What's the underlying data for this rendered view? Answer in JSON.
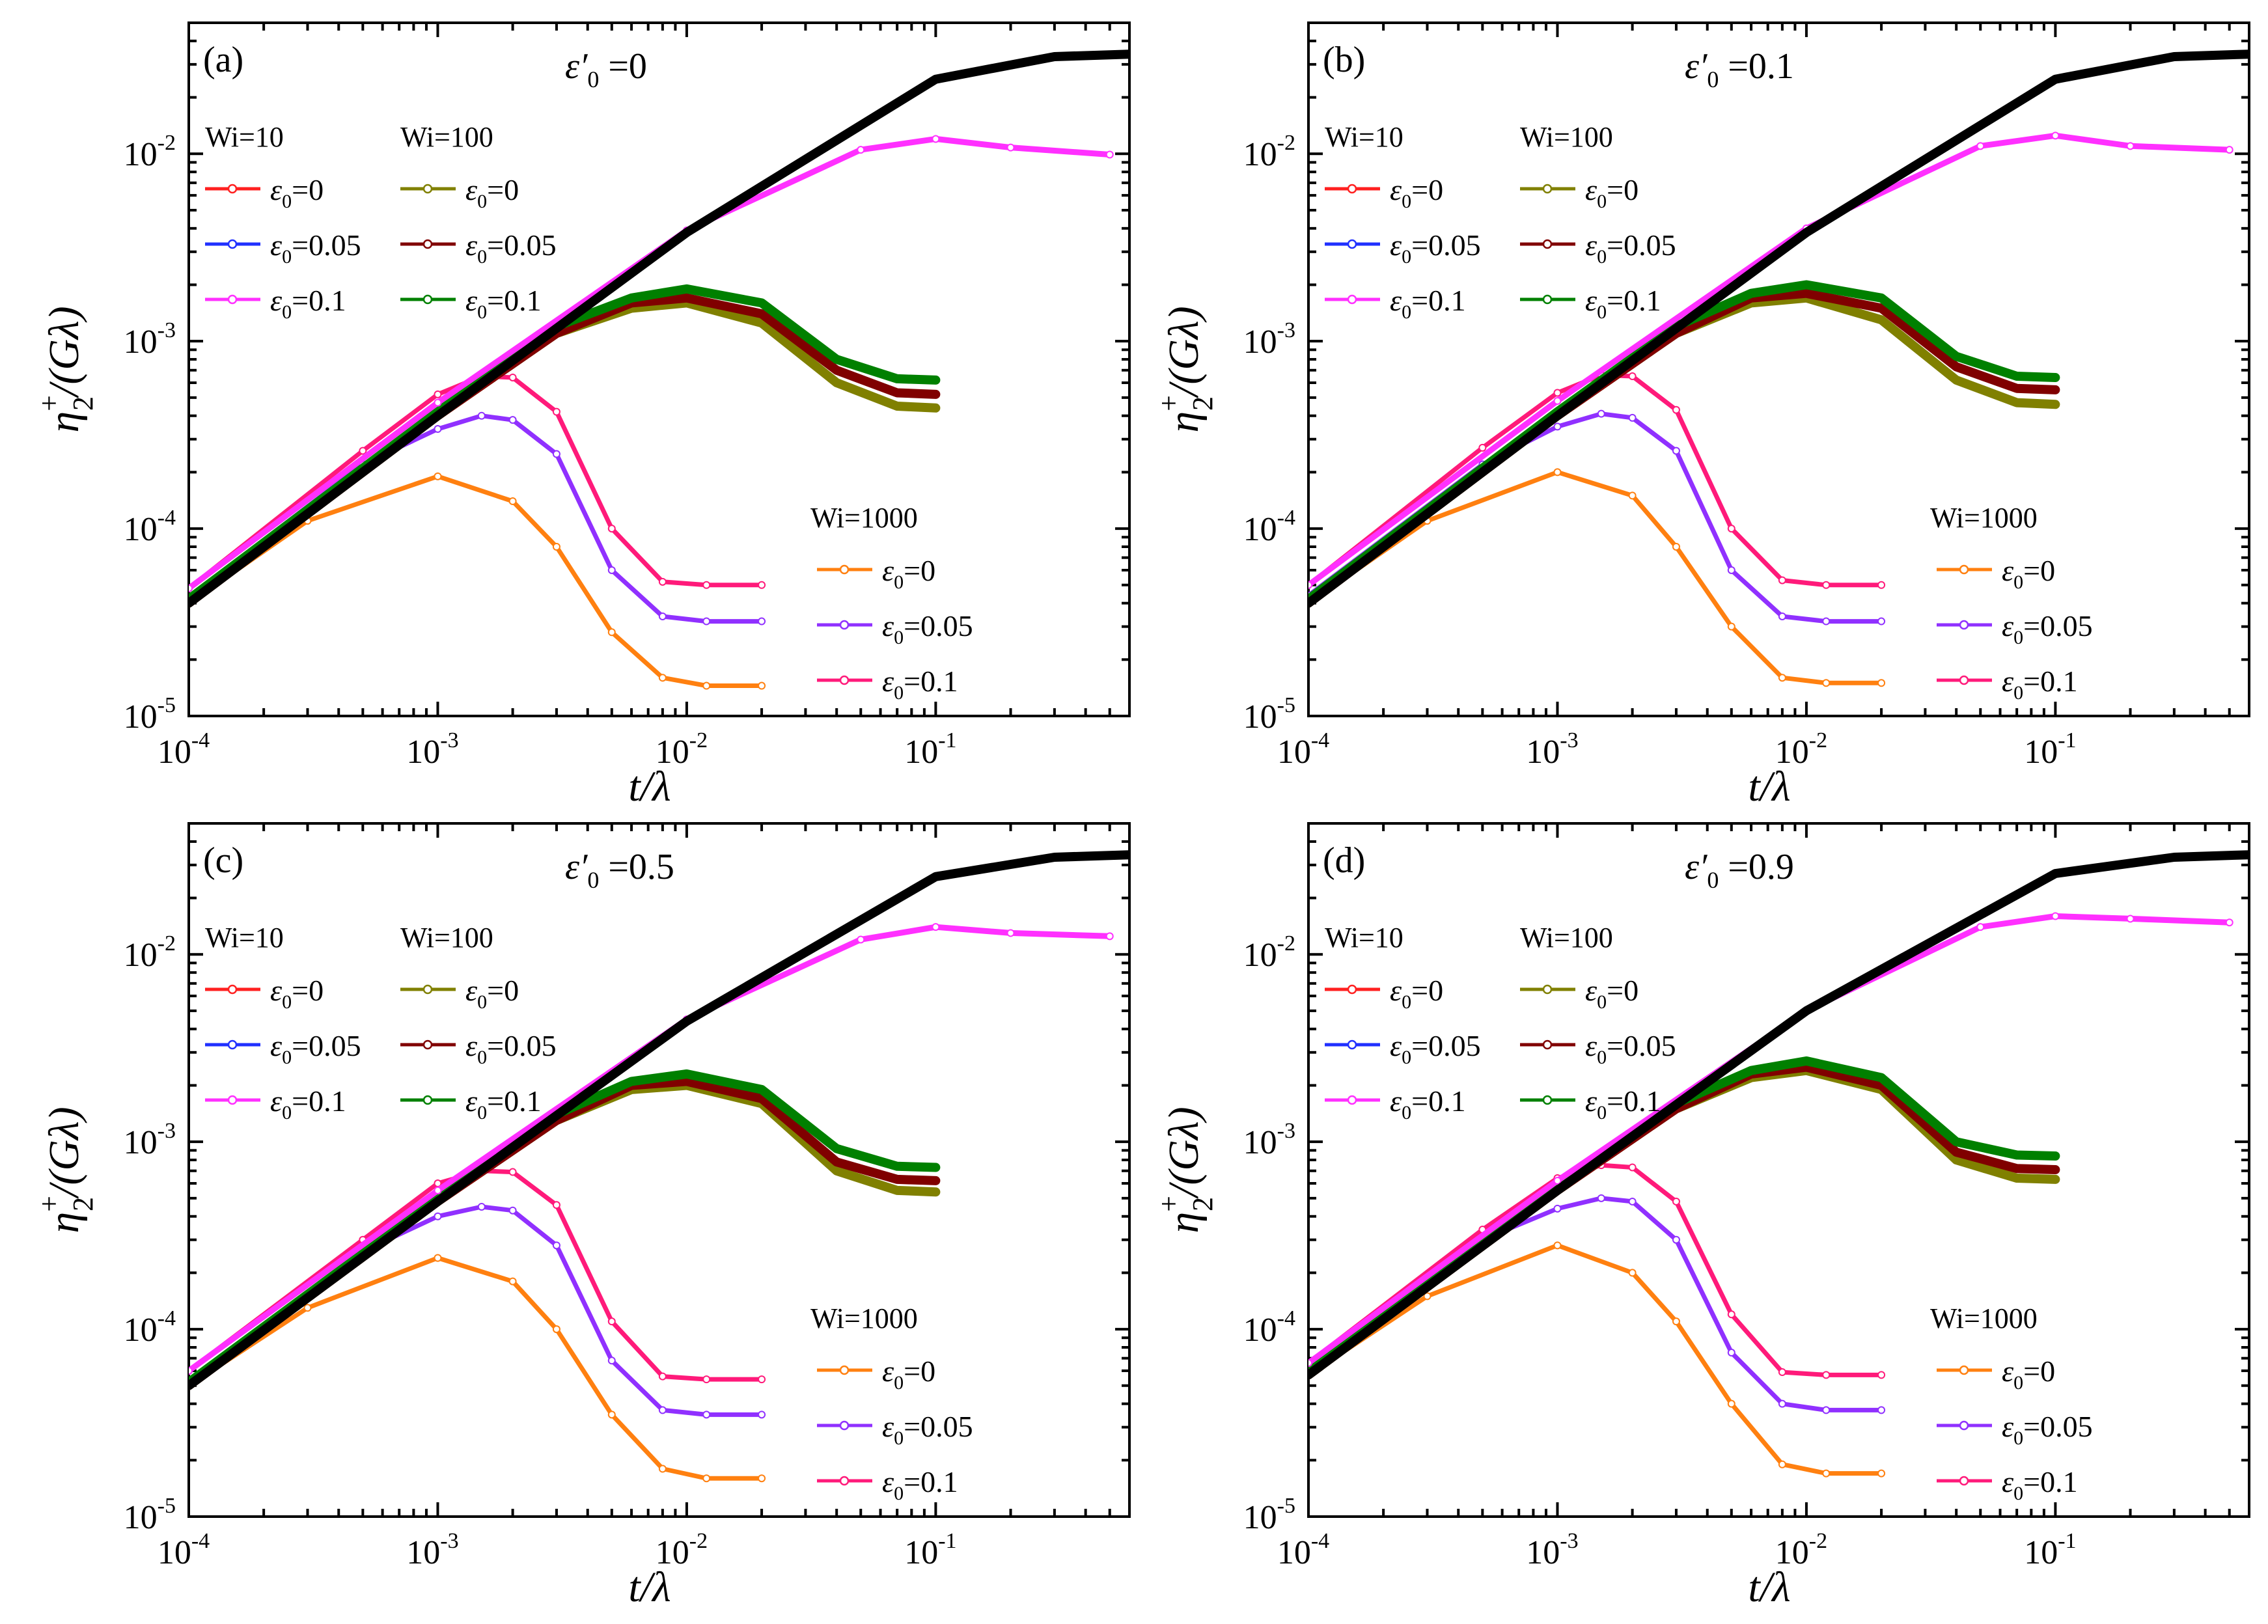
{
  "figure": {
    "xlabel": "t/λ",
    "ylabel_main": "η",
    "ylabel_sup": "+",
    "ylabel_sub": "2",
    "ylabel_rest": "/(Gλ)",
    "xlim": [
      0.0001,
      0.6
    ],
    "ylim": [
      1e-05,
      0.05
    ],
    "x_ticks": [
      {
        "value": 0.0001,
        "base": "10",
        "exp": "-4"
      },
      {
        "value": 0.001,
        "base": "10",
        "exp": "-3"
      },
      {
        "value": 0.01,
        "base": "10",
        "exp": "-2"
      },
      {
        "value": 0.1,
        "base": "10",
        "exp": "-1"
      }
    ],
    "y_ticks": [
      {
        "value": 1e-05,
        "base": "10",
        "exp": "-5"
      },
      {
        "value": 0.0001,
        "base": "10",
        "exp": "-4"
      },
      {
        "value": 0.001,
        "base": "10",
        "exp": "-3"
      },
      {
        "value": 0.01,
        "base": "10",
        "exp": "-2"
      }
    ]
  },
  "legend": {
    "group_wi10": "Wi=10",
    "group_wi100": "Wi=100",
    "group_wi1000": "Wi=1000",
    "eps_symbol": "ε",
    "eps_sub": "0",
    "entries": [
      "=0",
      "=0.05",
      "=0.1"
    ]
  },
  "colors": {
    "wi10": [
      "#ff2020",
      "#2030ff",
      "#ff30ff"
    ],
    "wi100": [
      "#808000",
      "#800000",
      "#008000"
    ],
    "wi1000": [
      "#ff8010",
      "#9030ff",
      "#ff1a7a"
    ],
    "black": "#000000"
  },
  "chart_data": [
    {
      "type": "line",
      "panel": "(a)",
      "eps_prime_symbol": "ε′",
      "eps_prime_sub": "0",
      "eps_prime_value": " =0",
      "title": "(a) ε′0 =0",
      "xscale": "log",
      "yscale": "log",
      "series": [
        {
          "name": "Wi=10 ε0=0",
          "x": [
            0.0001,
            0.001,
            0.01,
            0.1,
            0.3,
            0.6
          ],
          "y": [
            4e-05,
            0.0004,
            0.0038,
            0.025,
            0.033,
            0.034
          ]
        },
        {
          "name": "Wi=10 ε0=0.05",
          "x": [
            0.0001,
            0.001,
            0.01,
            0.1,
            0.3,
            0.6
          ],
          "y": [
            4e-05,
            0.0004,
            0.0038,
            0.025,
            0.033,
            0.034
          ]
        },
        {
          "name": "Wi=10 ε0=0.1",
          "x": [
            0.0001,
            0.001,
            0.01,
            0.05,
            0.1,
            0.2,
            0.5
          ],
          "y": [
            4.8e-05,
            0.00047,
            0.0039,
            0.0105,
            0.012,
            0.0108,
            0.0099
          ]
        },
        {
          "name": "Wi=100 ε0=0",
          "x": [
            0.0001,
            0.001,
            0.003,
            0.006,
            0.01,
            0.02,
            0.04,
            0.07,
            0.1
          ],
          "y": [
            4e-05,
            0.0004,
            0.0011,
            0.0015,
            0.0016,
            0.00125,
            0.0006,
            0.00045,
            0.00044
          ]
        },
        {
          "name": "Wi=100 ε0=0.05",
          "x": [
            0.0001,
            0.001,
            0.003,
            0.006,
            0.01,
            0.02,
            0.04,
            0.07,
            0.1
          ],
          "y": [
            4e-05,
            0.0004,
            0.0011,
            0.0016,
            0.0017,
            0.0014,
            0.0007,
            0.00053,
            0.00052
          ]
        },
        {
          "name": "Wi=100 ε0=0.1",
          "x": [
            0.0001,
            0.001,
            0.003,
            0.006,
            0.01,
            0.02,
            0.04,
            0.07,
            0.1
          ],
          "y": [
            4.2e-05,
            0.00042,
            0.0012,
            0.0017,
            0.0019,
            0.0016,
            0.0008,
            0.00063,
            0.00062
          ]
        },
        {
          "name": "Wi=1000 ε0=0",
          "x": [
            0.0001,
            0.0003,
            0.001,
            0.002,
            0.003,
            0.005,
            0.008,
            0.012,
            0.02
          ],
          "y": [
            4e-05,
            0.00011,
            0.00019,
            0.00014,
            8e-05,
            2.8e-05,
            1.6e-05,
            1.45e-05,
            1.45e-05
          ]
        },
        {
          "name": "Wi=1000 ε0=0.05",
          "x": [
            0.0001,
            0.0005,
            0.001,
            0.0015,
            0.002,
            0.003,
            0.005,
            0.008,
            0.012,
            0.02
          ],
          "y": [
            4.3e-05,
            0.00022,
            0.00034,
            0.0004,
            0.00038,
            0.00025,
            6e-05,
            3.4e-05,
            3.2e-05,
            3.2e-05
          ]
        },
        {
          "name": "Wi=1000 ε0=0.1",
          "x": [
            0.0001,
            0.0005,
            0.001,
            0.0015,
            0.002,
            0.003,
            0.005,
            0.008,
            0.012,
            0.02
          ],
          "y": [
            4.8e-05,
            0.00026,
            0.00052,
            0.00065,
            0.00064,
            0.00042,
            0.0001,
            5.2e-05,
            5e-05,
            5e-05
          ]
        }
      ]
    },
    {
      "type": "line",
      "panel": "(b)",
      "eps_prime_symbol": "ε′",
      "eps_prime_sub": "0",
      "eps_prime_value": " =0.1",
      "title": "(b) ε′0 =0.1",
      "xscale": "log",
      "yscale": "log",
      "series": [
        {
          "name": "Wi=10 ε0=0",
          "x": [
            0.0001,
            0.001,
            0.01,
            0.1,
            0.3,
            0.6
          ],
          "y": [
            4e-05,
            0.0004,
            0.0038,
            0.025,
            0.033,
            0.034
          ]
        },
        {
          "name": "Wi=10 ε0=0.05",
          "x": [
            0.0001,
            0.001,
            0.01,
            0.1,
            0.3,
            0.6
          ],
          "y": [
            4e-05,
            0.0004,
            0.0038,
            0.025,
            0.033,
            0.034
          ]
        },
        {
          "name": "Wi=10 ε0=0.1",
          "x": [
            0.0001,
            0.001,
            0.01,
            0.05,
            0.1,
            0.2,
            0.5
          ],
          "y": [
            5e-05,
            0.00048,
            0.004,
            0.011,
            0.0125,
            0.011,
            0.0105
          ]
        },
        {
          "name": "Wi=100 ε0=0",
          "x": [
            0.0001,
            0.001,
            0.003,
            0.006,
            0.01,
            0.02,
            0.04,
            0.07,
            0.1
          ],
          "y": [
            4e-05,
            0.0004,
            0.0011,
            0.0016,
            0.0017,
            0.0013,
            0.00062,
            0.00047,
            0.00046
          ]
        },
        {
          "name": "Wi=100 ε0=0.05",
          "x": [
            0.0001,
            0.001,
            0.003,
            0.006,
            0.01,
            0.02,
            0.04,
            0.07,
            0.1
          ],
          "y": [
            4e-05,
            0.0004,
            0.0011,
            0.0017,
            0.0018,
            0.0015,
            0.00073,
            0.00056,
            0.00055
          ]
        },
        {
          "name": "Wi=100 ε0=0.1",
          "x": [
            0.0001,
            0.001,
            0.003,
            0.006,
            0.01,
            0.02,
            0.04,
            0.07,
            0.1
          ],
          "y": [
            4.2e-05,
            0.00042,
            0.0012,
            0.0018,
            0.002,
            0.0017,
            0.00083,
            0.00065,
            0.00064
          ]
        },
        {
          "name": "Wi=1000 ε0=0",
          "x": [
            0.0001,
            0.0003,
            0.001,
            0.002,
            0.003,
            0.005,
            0.008,
            0.012,
            0.02
          ],
          "y": [
            4e-05,
            0.00011,
            0.0002,
            0.00015,
            8e-05,
            3e-05,
            1.6e-05,
            1.5e-05,
            1.5e-05
          ]
        },
        {
          "name": "Wi=1000 ε0=0.05",
          "x": [
            0.0001,
            0.0005,
            0.001,
            0.0015,
            0.002,
            0.003,
            0.005,
            0.008,
            0.012,
            0.02
          ],
          "y": [
            4.4e-05,
            0.00022,
            0.00035,
            0.00041,
            0.00039,
            0.00026,
            6e-05,
            3.4e-05,
            3.2e-05,
            3.2e-05
          ]
        },
        {
          "name": "Wi=1000 ε0=0.1",
          "x": [
            0.0001,
            0.0005,
            0.001,
            0.0015,
            0.002,
            0.003,
            0.005,
            0.008,
            0.012,
            0.02
          ],
          "y": [
            5e-05,
            0.00027,
            0.00053,
            0.00066,
            0.00065,
            0.00043,
            0.0001,
            5.3e-05,
            5e-05,
            5e-05
          ]
        }
      ]
    },
    {
      "type": "line",
      "panel": "(c)",
      "eps_prime_symbol": "ε′",
      "eps_prime_sub": "0",
      "eps_prime_value": " =0.5",
      "title": "(c) ε′0 =0.5",
      "xscale": "log",
      "yscale": "log",
      "series": [
        {
          "name": "Wi=10 ε0=0",
          "x": [
            0.0001,
            0.001,
            0.01,
            0.1,
            0.3,
            0.6
          ],
          "y": [
            5e-05,
            0.00048,
            0.0044,
            0.026,
            0.033,
            0.034
          ]
        },
        {
          "name": "Wi=10 ε0=0.05",
          "x": [
            0.0001,
            0.001,
            0.01,
            0.1,
            0.3,
            0.6
          ],
          "y": [
            5e-05,
            0.00048,
            0.0044,
            0.026,
            0.033,
            0.034
          ]
        },
        {
          "name": "Wi=10 ε0=0.1",
          "x": [
            0.0001,
            0.001,
            0.01,
            0.05,
            0.1,
            0.2,
            0.5
          ],
          "y": [
            6e-05,
            0.00055,
            0.0045,
            0.012,
            0.014,
            0.013,
            0.0125
          ]
        },
        {
          "name": "Wi=100 ε0=0",
          "x": [
            0.0001,
            0.001,
            0.003,
            0.006,
            0.01,
            0.02,
            0.04,
            0.07,
            0.1
          ],
          "y": [
            5e-05,
            0.00048,
            0.0013,
            0.0019,
            0.002,
            0.0016,
            0.0007,
            0.00055,
            0.00054
          ]
        },
        {
          "name": "Wi=100 ε0=0.05",
          "x": [
            0.0001,
            0.001,
            0.003,
            0.006,
            0.01,
            0.02,
            0.04,
            0.07,
            0.1
          ],
          "y": [
            5e-05,
            0.00048,
            0.0013,
            0.002,
            0.0021,
            0.0017,
            0.00078,
            0.00063,
            0.00062
          ]
        },
        {
          "name": "Wi=100 ε0=0.1",
          "x": [
            0.0001,
            0.001,
            0.003,
            0.006,
            0.01,
            0.02,
            0.04,
            0.07,
            0.1
          ],
          "y": [
            5.2e-05,
            0.0005,
            0.0014,
            0.0021,
            0.0023,
            0.0019,
            0.00092,
            0.00074,
            0.00073
          ]
        },
        {
          "name": "Wi=1000 ε0=0",
          "x": [
            0.0001,
            0.0003,
            0.001,
            0.002,
            0.003,
            0.005,
            0.008,
            0.012,
            0.02
          ],
          "y": [
            5e-05,
            0.00013,
            0.00024,
            0.00018,
            0.0001,
            3.5e-05,
            1.8e-05,
            1.6e-05,
            1.6e-05
          ]
        },
        {
          "name": "Wi=1000 ε0=0.05",
          "x": [
            0.0001,
            0.0005,
            0.001,
            0.0015,
            0.002,
            0.003,
            0.005,
            0.008,
            0.012,
            0.02
          ],
          "y": [
            5.2e-05,
            0.00026,
            0.0004,
            0.00045,
            0.00043,
            0.00028,
            6.8e-05,
            3.7e-05,
            3.5e-05,
            3.5e-05
          ]
        },
        {
          "name": "Wi=1000 ε0=0.1",
          "x": [
            0.0001,
            0.0005,
            0.001,
            0.0015,
            0.002,
            0.003,
            0.005,
            0.008,
            0.012,
            0.02
          ],
          "y": [
            6e-05,
            0.0003,
            0.0006,
            0.0007,
            0.00069,
            0.00046,
            0.00011,
            5.6e-05,
            5.4e-05,
            5.4e-05
          ]
        }
      ]
    },
    {
      "type": "line",
      "panel": "(d)",
      "eps_prime_symbol": "ε′",
      "eps_prime_sub": "0",
      "eps_prime_value": " =0.9",
      "title": "(d) ε′0 =0.9",
      "xscale": "log",
      "yscale": "log",
      "series": [
        {
          "name": "Wi=10 ε0=0",
          "x": [
            0.0001,
            0.001,
            0.01,
            0.1,
            0.3,
            0.6
          ],
          "y": [
            5.7e-05,
            0.00055,
            0.005,
            0.027,
            0.033,
            0.034
          ]
        },
        {
          "name": "Wi=10 ε0=0.05",
          "x": [
            0.0001,
            0.001,
            0.01,
            0.1,
            0.3,
            0.6
          ],
          "y": [
            5.7e-05,
            0.00055,
            0.005,
            0.027,
            0.033,
            0.034
          ]
        },
        {
          "name": "Wi=10 ε0=0.1",
          "x": [
            0.0001,
            0.001,
            0.01,
            0.05,
            0.1,
            0.2,
            0.5
          ],
          "y": [
            6.6e-05,
            0.00062,
            0.005,
            0.014,
            0.016,
            0.0155,
            0.0148
          ]
        },
        {
          "name": "Wi=100 ε0=0",
          "x": [
            0.0001,
            0.001,
            0.003,
            0.006,
            0.01,
            0.02,
            0.04,
            0.07,
            0.1
          ],
          "y": [
            5.7e-05,
            0.00055,
            0.0015,
            0.0022,
            0.0024,
            0.0019,
            0.0008,
            0.00064,
            0.00063
          ]
        },
        {
          "name": "Wi=100 ε0=0.05",
          "x": [
            0.0001,
            0.001,
            0.003,
            0.006,
            0.01,
            0.02,
            0.04,
            0.07,
            0.1
          ],
          "y": [
            5.7e-05,
            0.00055,
            0.0015,
            0.0023,
            0.0025,
            0.002,
            0.00088,
            0.00072,
            0.00071
          ]
        },
        {
          "name": "Wi=100 ε0=0.1",
          "x": [
            0.0001,
            0.001,
            0.003,
            0.006,
            0.01,
            0.02,
            0.04,
            0.07,
            0.1
          ],
          "y": [
            6e-05,
            0.00057,
            0.0016,
            0.0024,
            0.0027,
            0.0022,
            0.001,
            0.00085,
            0.00084
          ]
        },
        {
          "name": "Wi=1000 ε0=0",
          "x": [
            0.0001,
            0.0003,
            0.001,
            0.002,
            0.003,
            0.005,
            0.008,
            0.012,
            0.02
          ],
          "y": [
            5.7e-05,
            0.00015,
            0.00028,
            0.0002,
            0.00011,
            4e-05,
            1.9e-05,
            1.7e-05,
            1.7e-05
          ]
        },
        {
          "name": "Wi=1000 ε0=0.05",
          "x": [
            0.0001,
            0.0005,
            0.001,
            0.0015,
            0.002,
            0.003,
            0.005,
            0.008,
            0.012,
            0.02
          ],
          "y": [
            6e-05,
            0.0003,
            0.00044,
            0.0005,
            0.00048,
            0.0003,
            7.5e-05,
            4e-05,
            3.7e-05,
            3.7e-05
          ]
        },
        {
          "name": "Wi=1000 ε0=0.1",
          "x": [
            0.0001,
            0.0005,
            0.001,
            0.0015,
            0.002,
            0.003,
            0.005,
            0.008,
            0.012,
            0.02
          ],
          "y": [
            6.6e-05,
            0.00034,
            0.00064,
            0.00075,
            0.00073,
            0.00048,
            0.00012,
            5.9e-05,
            5.7e-05,
            5.7e-05
          ]
        }
      ]
    }
  ]
}
